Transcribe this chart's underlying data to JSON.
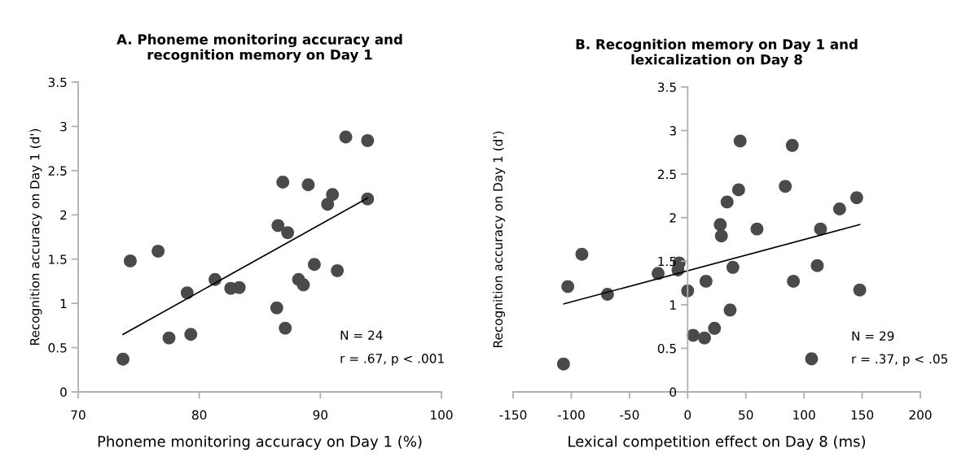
{
  "chart_data": [
    {
      "type": "scatter",
      "title": "A. Phoneme monitoring accuracy and\nrecognition memory on Day 1",
      "xlabel": "Phoneme monitoring accuracy on Day 1 (%)",
      "ylabel": "Recognition accuracy on Day 1 (d')",
      "xlim": [
        70,
        100
      ],
      "xticks": [
        70,
        80,
        90,
        100
      ],
      "ylim": [
        0,
        3.5
      ],
      "yticks": [
        0,
        0.5,
        1,
        1.5,
        2,
        2.5,
        3,
        3.5
      ],
      "grid": false,
      "annotations": [
        "N = 24",
        "r = .67, p < .001"
      ],
      "series": [
        {
          "color": "#4a4a4a",
          "marker": "circle",
          "x": [
            73.7,
            74.3,
            76.6,
            77.5,
            79.0,
            79.3,
            81.3,
            82.6,
            83.3,
            86.4,
            86.5,
            86.9,
            87.1,
            87.3,
            88.2,
            88.6,
            89.0,
            89.5,
            90.6,
            91.0,
            91.4,
            92.1,
            93.9,
            93.9
          ],
          "values": [
            0.37,
            1.48,
            1.59,
            0.61,
            1.12,
            0.65,
            1.27,
            1.17,
            1.18,
            0.95,
            1.88,
            2.37,
            0.72,
            1.8,
            1.27,
            1.21,
            2.34,
            1.44,
            2.12,
            2.23,
            1.37,
            2.88,
            2.84,
            2.18
          ]
        },
        {
          "type": "line",
          "marker": "none",
          "color": "#000000",
          "x": [
            73.7,
            93.9
          ],
          "values": [
            0.65,
            2.19
          ]
        }
      ]
    },
    {
      "type": "scatter",
      "title": "B. Recognition memory on Day 1 and\nlexicalization on Day 8",
      "xlabel": "Lexical competition effect on Day 8 (ms)",
      "ylabel": "Recognition accuracy on Day 1 (d')",
      "xlim": [
        -150,
        200
      ],
      "xticks": [
        -150,
        -100,
        -50,
        0,
        50,
        100,
        150,
        200
      ],
      "ylim": [
        0,
        3.5
      ],
      "yticks": [
        0,
        0.5,
        1,
        1.5,
        2,
        2.5,
        3,
        3.5
      ],
      "grid": false,
      "annotations": [
        "N = 29",
        "r = .37, p < .05"
      ],
      "series": [
        {
          "color": "#4a4a4a",
          "marker": "circle",
          "x": [
            -106.7,
            -103,
            -90.9,
            -68.9,
            -25.4,
            -8.3,
            -7.3,
            0,
            4.7,
            14.5,
            15.8,
            23.1,
            28.0,
            29.0,
            33.9,
            36.5,
            38.9,
            43.8,
            45.1,
            59.6,
            83.9,
            89.9,
            90.9,
            106.5,
            111.4,
            114.2,
            130.6,
            145.3,
            147.9
          ],
          "values": [
            0.32,
            1.21,
            1.58,
            1.12,
            1.36,
            1.4,
            1.48,
            1.16,
            0.65,
            0.62,
            1.27,
            0.73,
            1.92,
            1.79,
            2.18,
            0.94,
            1.43,
            2.32,
            2.88,
            1.87,
            2.36,
            2.83,
            1.27,
            0.38,
            1.45,
            1.87,
            2.1,
            2.23,
            1.17
          ]
        },
        {
          "type": "line",
          "marker": "none",
          "color": "#000000",
          "x": [
            -106.5,
            147.9
          ],
          "values": [
            1.01,
            1.92
          ]
        }
      ]
    }
  ]
}
